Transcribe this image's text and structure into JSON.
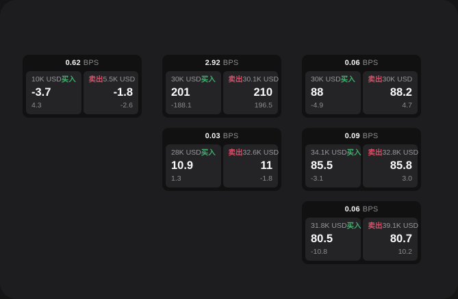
{
  "labels": {
    "bps_suffix": "BPS",
    "buy": "买入",
    "sell": "卖出"
  },
  "colors": {
    "window_background": "#1d1d1f",
    "backdrop": "#151515",
    "card_background": "#111112",
    "panel_background": "#242427",
    "buy_green": "#42ad6d",
    "sell_red": "#d94f68",
    "text_primary": "#f5f5f5",
    "text_muted": "#8d8d91"
  },
  "cards": [
    {
      "bps": "0.62",
      "buy_size": "10K USD",
      "buy_price": "-3.7",
      "buy_delta": "4.3",
      "sell_size": "5.5K USD",
      "sell_price": "-1.8",
      "sell_delta": "-2.6"
    },
    {
      "bps": "2.92",
      "buy_size": "30K USD",
      "buy_price": "201",
      "buy_delta": "-188.1",
      "sell_size": "30.1K USD",
      "sell_price": "210",
      "sell_delta": "196.5"
    },
    {
      "bps": "0.06",
      "buy_size": "30K USD",
      "buy_price": "88",
      "buy_delta": "-4.9",
      "sell_size": "30K USD",
      "sell_price": "88.2",
      "sell_delta": "4.7"
    },
    {
      "bps": "0.03",
      "buy_size": "28K USD",
      "buy_price": "10.9",
      "buy_delta": "1.3",
      "sell_size": "32.6K USD",
      "sell_price": "11",
      "sell_delta": "-1.8"
    },
    {
      "bps": "0.09",
      "buy_size": "34.1K USD",
      "buy_price": "85.5",
      "buy_delta": "-3.1",
      "sell_size": "32.8K USD",
      "sell_price": "85.8",
      "sell_delta": "3.0"
    },
    {
      "bps": "0.06",
      "buy_size": "31.8K USD",
      "buy_price": "80.5",
      "buy_delta": "-10.8",
      "sell_size": "39.1K USD",
      "sell_price": "80.7",
      "sell_delta": "10.2"
    }
  ]
}
